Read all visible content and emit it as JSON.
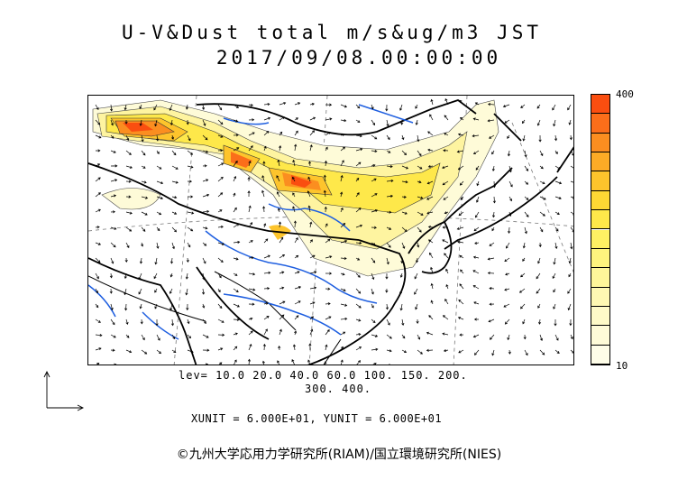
{
  "title": "U-V&Dust total m/s&ug/m3 JST",
  "datetime": "2017/09/08.00:00:00",
  "colorbar": {
    "max_label": "400",
    "min_label": "10",
    "colors": [
      "#fa4e10",
      "#fb6e1a",
      "#fb8e20",
      "#fcab26",
      "#fdc42c",
      "#fed834",
      "#fee84a",
      "#fef063",
      "#fef47e",
      "#fef69a",
      "#fef8b3",
      "#fefac8",
      "#fefbd8",
      "#fefde8"
    ]
  },
  "levels_line1": "lev= 10.0 20.0 40.0 60.0 100. 150. 200.",
  "levels_line2": "300. 400.",
  "units": "XUNIT = 6.000E+01, YUNIT = 6.000E+01",
  "copyright": "©九州大学応用力学研究所(RIAM)/国立環境研究所(NIES)",
  "map": {
    "dust_color_low": "#fef6b8",
    "dust_color_high": "#fa4e10",
    "river_color": "#1f5fe0",
    "coast_color": "#000000"
  }
}
